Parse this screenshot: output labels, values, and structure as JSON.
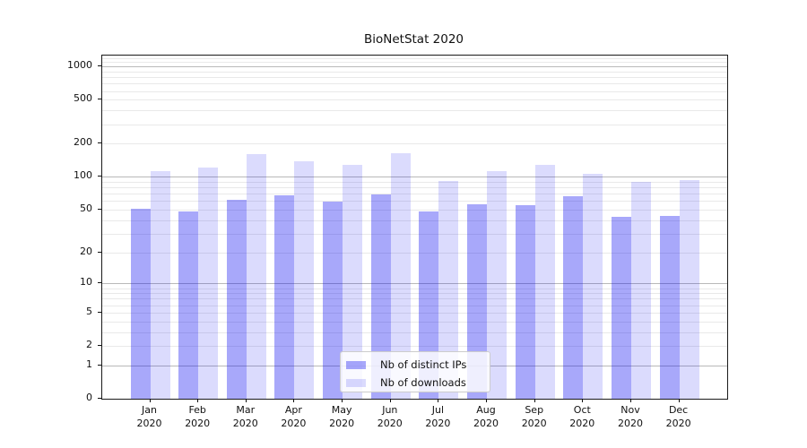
{
  "title": "BioNetStat 2020",
  "chart_data": {
    "type": "bar",
    "title": "BioNetStat 2020",
    "categories": [
      "Jan",
      "Feb",
      "Mar",
      "Apr",
      "May",
      "Jun",
      "Jul",
      "Aug",
      "Sep",
      "Oct",
      "Nov",
      "Dec"
    ],
    "x_tick_second_line": "2020",
    "series": [
      {
        "name": "Nb of distinct IPs",
        "color": "rgba(0,0,240,0.34)",
        "values": [
          51,
          48,
          62,
          68,
          59,
          69,
          48,
          56,
          55,
          67,
          43,
          44
        ]
      },
      {
        "name": "Nb of downloads",
        "color": "rgba(0,0,240,0.14)",
        "values": [
          113,
          121,
          161,
          138,
          129,
          164,
          91,
          112,
          128,
          107,
          90,
          94
        ]
      }
    ],
    "y_ticks": [
      0,
      1,
      2,
      5,
      10,
      20,
      50,
      100,
      200,
      500,
      1000
    ],
    "y_scale": "log10(value+1)",
    "ylim": [
      0,
      1260
    ],
    "grid": true,
    "legend_position": "lower center"
  },
  "colors": {
    "major_grid": "#b9b9b9",
    "minor_grid": "#e9e9e9",
    "spine": "#1a1a1a",
    "text": "#111111",
    "background": "#ffffff"
  }
}
